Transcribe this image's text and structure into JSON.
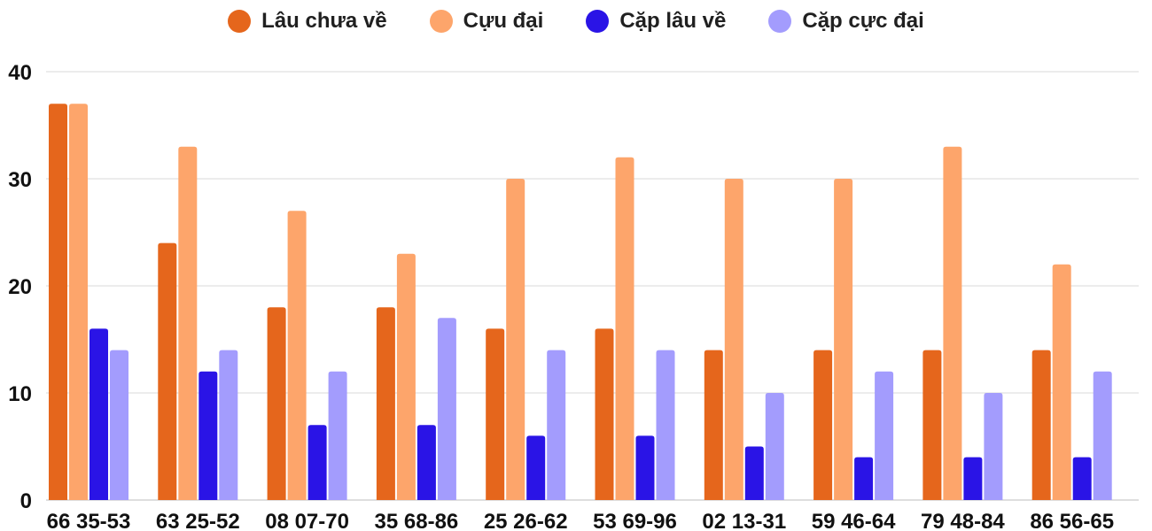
{
  "chart_data": {
    "type": "bar",
    "categories": [
      "66 35-53",
      "63 25-52",
      "08 07-70",
      "35 68-86",
      "25 26-62",
      "53 69-96",
      "02 13-31",
      "59 46-64",
      "79 48-84",
      "86 56-65"
    ],
    "series": [
      {
        "name": "Lâu chưa về",
        "color": "#e5661c",
        "values": [
          37,
          24,
          18,
          18,
          16,
          16,
          14,
          14,
          14,
          14
        ]
      },
      {
        "name": "Cựu đại",
        "color": "#fda56b",
        "values": [
          37,
          33,
          27,
          23,
          30,
          32,
          30,
          30,
          33,
          22
        ]
      },
      {
        "name": "Cặp lâu về",
        "color": "#2a14e6",
        "values": [
          16,
          12,
          7,
          7,
          6,
          6,
          5,
          4,
          4,
          4
        ]
      },
      {
        "name": "Cặp cực đại",
        "color": "#a39cfd",
        "values": [
          14,
          14,
          12,
          17,
          14,
          14,
          10,
          12,
          10,
          12
        ]
      }
    ],
    "ylim": [
      0,
      40
    ],
    "yticks": [
      "0",
      "10",
      "20",
      "30",
      "40"
    ],
    "grid": true,
    "legend_position": "top-center",
    "title": "",
    "xlabel": "",
    "ylabel": ""
  }
}
